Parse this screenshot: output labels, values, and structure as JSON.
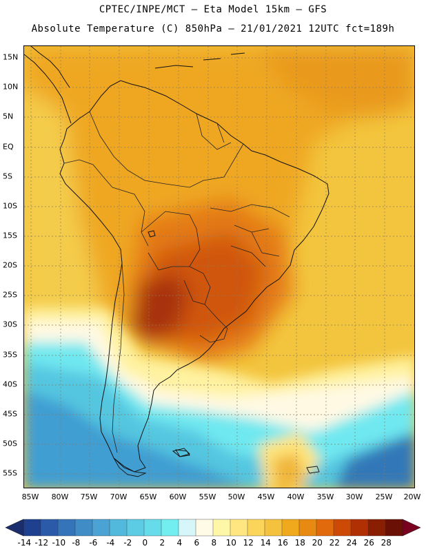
{
  "header": {
    "title_line1": "CPTEC/INPE/MCT –  Eta Model 15km – GFS",
    "title_line2": "Absolute Temperature (C) 850hPa – 21/01/2021 12UTC fct=189h"
  },
  "map": {
    "lat_labels": [
      "15N",
      "10N",
      "5N",
      "EQ",
      "5S",
      "10S",
      "15S",
      "20S",
      "25S",
      "30S",
      "35S",
      "40S",
      "45S",
      "50S",
      "55S"
    ],
    "lon_labels": [
      "85W",
      "80W",
      "75W",
      "70W",
      "65W",
      "60W",
      "55W",
      "50W",
      "45W",
      "40W",
      "35W",
      "30W",
      "25W",
      "20W"
    ]
  },
  "colorbar": {
    "labels": [
      "-14",
      "-12",
      "-10",
      "-8",
      "-6",
      "-4",
      "-2",
      "0",
      "2",
      "4",
      "6",
      "8",
      "10",
      "12",
      "14",
      "16",
      "18",
      "20",
      "22",
      "24",
      "26",
      "28"
    ],
    "colors": [
      "#1f3f8f",
      "#2a5aa8",
      "#3574b8",
      "#3f8cc6",
      "#4aa3d4",
      "#52b8dc",
      "#5ccbe4",
      "#66dcea",
      "#72eef0",
      "#d6f6fa",
      "#fffbe6",
      "#fff7a8",
      "#ffe680",
      "#fbd45a",
      "#f5c23e",
      "#f0a81c",
      "#e88a12",
      "#e06a0c",
      "#cc4a06",
      "#b03004",
      "#8a1e02",
      "#6a1004"
    ],
    "under_color": "#1a2e6e",
    "over_color": "#7a0020"
  }
}
